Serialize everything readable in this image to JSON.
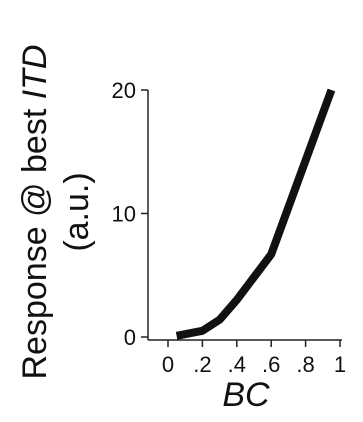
{
  "chart_data": {
    "type": "line",
    "xlabel": "BC",
    "ylabel_main": "Response @ best ",
    "ylabel_italic": "ITD",
    "ylabel_unit": "(a.u.)",
    "xlim": [
      0,
      1
    ],
    "ylim": [
      0,
      20
    ],
    "x_ticks": [
      0,
      0.2,
      0.4,
      0.6,
      0.8,
      1
    ],
    "x_tick_labels": [
      "0",
      ".2",
      ".4",
      ".6",
      ".8",
      "1"
    ],
    "y_ticks": [
      0,
      10,
      20
    ],
    "y_tick_labels": [
      "0",
      "10",
      "20"
    ],
    "grid": false,
    "line_color": "#111111",
    "series": [
      {
        "x": [
          0.05,
          0.2,
          0.3,
          0.4,
          0.6,
          0.95
        ],
        "values": [
          0.1,
          0.5,
          1.4,
          3.0,
          6.7,
          20.0
        ]
      }
    ]
  }
}
